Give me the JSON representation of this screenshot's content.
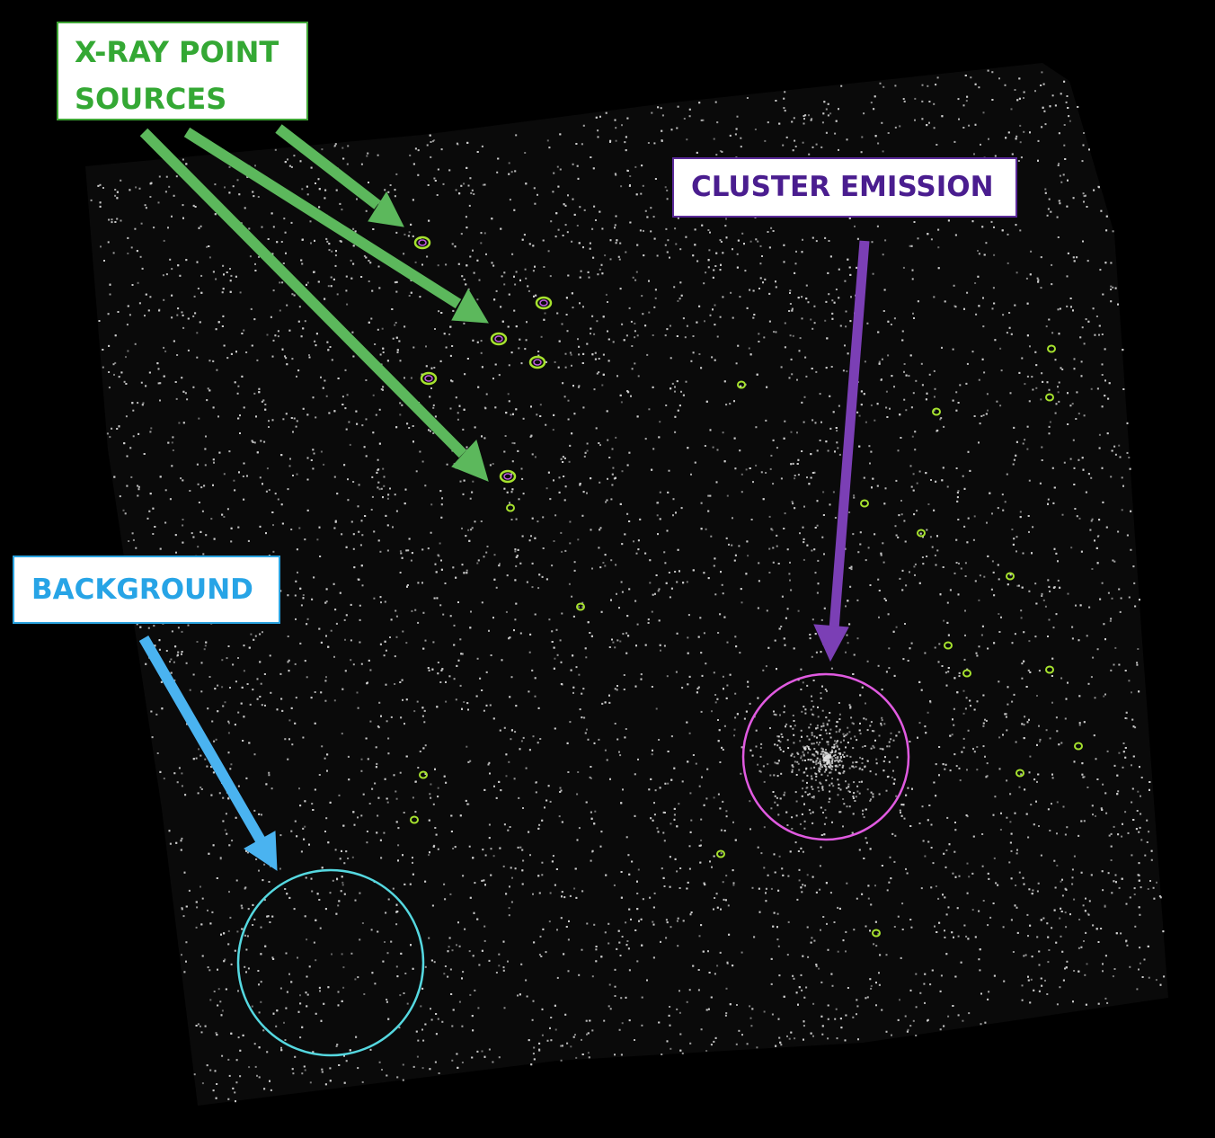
{
  "labels": {
    "xray_line1": "X-RAY POINT",
    "xray_line2": "SOURCES",
    "cluster": "CLUSTER EMISSION",
    "background": "BACKGROUND"
  },
  "colors": {
    "field_background": "#000000",
    "photon_dots": "#d0d0d0",
    "xray_arrow": "#5cb85c",
    "xray_label_text": "#34a834",
    "cluster_arrow": "#7b3fb5",
    "cluster_label_text": "#4a1d8f",
    "background_arrow": "#4ab3f0",
    "background_label_text": "#27a4e6",
    "cluster_region": "#e05ae0",
    "background_region": "#55d8e0",
    "point_source_contours": "#a6e22e"
  }
}
